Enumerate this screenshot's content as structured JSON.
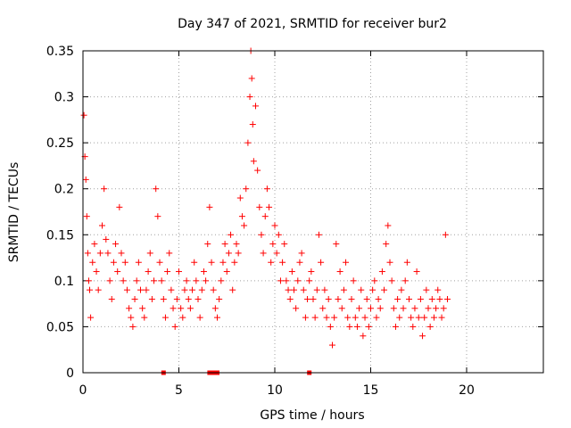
{
  "chart_data": {
    "type": "scatter",
    "title": "Day 347 of 2021, SRMTID for receiver bur2",
    "xlabel": "GPS time / hours",
    "ylabel": "SRMTID / TECUs",
    "xlim": [
      0,
      24
    ],
    "ylim": [
      0,
      0.35
    ],
    "x_ticks": [
      0,
      5,
      10,
      15,
      20
    ],
    "x_tick_labels": [
      "0",
      "5",
      "10",
      "15",
      "20"
    ],
    "y_ticks": [
      0,
      0.05,
      0.1,
      0.15,
      0.2,
      0.25,
      0.3,
      0.35
    ],
    "y_tick_labels": [
      "0",
      "0.05",
      "0.1",
      "0.15",
      "0.2",
      "0.25",
      "0.3",
      "0.35"
    ],
    "grid": true,
    "marker": "plus",
    "color": "#ff0000",
    "series": [
      {
        "name": "bur2 SRMTID",
        "points": [
          [
            0.05,
            0.28
          ],
          [
            0.1,
            0.235
          ],
          [
            0.15,
            0.21
          ],
          [
            0.2,
            0.17
          ],
          [
            0.25,
            0.13
          ],
          [
            0.3,
            0.1
          ],
          [
            0.35,
            0.09
          ],
          [
            0.4,
            0.06
          ],
          [
            0.5,
            0.12
          ],
          [
            0.6,
            0.14
          ],
          [
            0.7,
            0.11
          ],
          [
            0.8,
            0.09
          ],
          [
            0.9,
            0.13
          ],
          [
            1.0,
            0.16
          ],
          [
            1.1,
            0.2
          ],
          [
            1.2,
            0.145
          ],
          [
            1.3,
            0.13
          ],
          [
            1.4,
            0.1
          ],
          [
            1.5,
            0.08
          ],
          [
            1.6,
            0.12
          ],
          [
            1.7,
            0.14
          ],
          [
            1.8,
            0.11
          ],
          [
            1.9,
            0.18
          ],
          [
            2.0,
            0.13
          ],
          [
            2.1,
            0.1
          ],
          [
            2.2,
            0.12
          ],
          [
            2.3,
            0.09
          ],
          [
            2.4,
            0.07
          ],
          [
            2.5,
            0.06
          ],
          [
            2.6,
            0.05
          ],
          [
            2.7,
            0.08
          ],
          [
            2.8,
            0.1
          ],
          [
            2.9,
            0.12
          ],
          [
            3.0,
            0.09
          ],
          [
            3.1,
            0.07
          ],
          [
            3.2,
            0.06
          ],
          [
            3.3,
            0.09
          ],
          [
            3.4,
            0.11
          ],
          [
            3.5,
            0.13
          ],
          [
            3.6,
            0.08
          ],
          [
            3.7,
            0.1
          ],
          [
            3.8,
            0.2
          ],
          [
            3.9,
            0.17
          ],
          [
            4.0,
            0.12
          ],
          [
            4.1,
            0.1
          ],
          [
            4.2,
            0.08
          ],
          [
            4.3,
            0.06
          ],
          [
            4.4,
            0.11
          ],
          [
            4.5,
            0.13
          ],
          [
            4.6,
            0.09
          ],
          [
            4.7,
            0.07
          ],
          [
            4.8,
            0.05
          ],
          [
            4.9,
            0.08
          ],
          [
            5.0,
            0.11
          ],
          [
            5.1,
            0.07
          ],
          [
            5.2,
            0.06
          ],
          [
            5.3,
            0.09
          ],
          [
            5.4,
            0.1
          ],
          [
            5.5,
            0.08
          ],
          [
            5.6,
            0.07
          ],
          [
            5.7,
            0.09
          ],
          [
            5.8,
            0.12
          ],
          [
            5.9,
            0.1
          ],
          [
            6.0,
            0.08
          ],
          [
            6.1,
            0.06
          ],
          [
            6.2,
            0.09
          ],
          [
            6.3,
            0.11
          ],
          [
            6.4,
            0.1
          ],
          [
            6.5,
            0.14
          ],
          [
            6.6,
            0.18
          ],
          [
            6.7,
            0.12
          ],
          [
            6.8,
            0.09
          ],
          [
            6.9,
            0.07
          ],
          [
            7.0,
            0.06
          ],
          [
            7.1,
            0.08
          ],
          [
            7.2,
            0.1
          ],
          [
            7.3,
            0.12
          ],
          [
            7.4,
            0.14
          ],
          [
            7.5,
            0.11
          ],
          [
            7.6,
            0.13
          ],
          [
            7.7,
            0.15
          ],
          [
            7.8,
            0.09
          ],
          [
            7.9,
            0.12
          ],
          [
            8.0,
            0.14
          ],
          [
            8.1,
            0.13
          ],
          [
            8.2,
            0.19
          ],
          [
            8.3,
            0.17
          ],
          [
            8.4,
            0.16
          ],
          [
            8.5,
            0.2
          ],
          [
            8.6,
            0.25
          ],
          [
            8.7,
            0.3
          ],
          [
            8.75,
            0.35
          ],
          [
            8.8,
            0.32
          ],
          [
            8.85,
            0.27
          ],
          [
            8.9,
            0.23
          ],
          [
            9.0,
            0.29
          ],
          [
            9.1,
            0.22
          ],
          [
            9.2,
            0.18
          ],
          [
            9.3,
            0.15
          ],
          [
            9.4,
            0.13
          ],
          [
            9.5,
            0.17
          ],
          [
            9.6,
            0.2
          ],
          [
            9.7,
            0.18
          ],
          [
            9.8,
            0.12
          ],
          [
            9.9,
            0.14
          ],
          [
            10.0,
            0.16
          ],
          [
            10.1,
            0.13
          ],
          [
            10.2,
            0.15
          ],
          [
            10.3,
            0.1
          ],
          [
            10.4,
            0.12
          ],
          [
            10.5,
            0.14
          ],
          [
            10.6,
            0.1
          ],
          [
            10.7,
            0.09
          ],
          [
            10.8,
            0.08
          ],
          [
            10.9,
            0.11
          ],
          [
            11.0,
            0.09
          ],
          [
            11.1,
            0.07
          ],
          [
            11.2,
            0.1
          ],
          [
            11.3,
            0.12
          ],
          [
            11.4,
            0.13
          ],
          [
            11.5,
            0.09
          ],
          [
            11.6,
            0.06
          ],
          [
            11.7,
            0.08
          ],
          [
            11.8,
            0.1
          ],
          [
            11.9,
            0.11
          ],
          [
            12.0,
            0.08
          ],
          [
            12.1,
            0.06
          ],
          [
            12.2,
            0.09
          ],
          [
            12.3,
            0.15
          ],
          [
            12.4,
            0.12
          ],
          [
            12.5,
            0.07
          ],
          [
            12.6,
            0.09
          ],
          [
            12.7,
            0.06
          ],
          [
            12.8,
            0.08
          ],
          [
            12.9,
            0.05
          ],
          [
            13.0,
            0.03
          ],
          [
            13.1,
            0.06
          ],
          [
            13.2,
            0.14
          ],
          [
            13.3,
            0.08
          ],
          [
            13.4,
            0.11
          ],
          [
            13.5,
            0.07
          ],
          [
            13.6,
            0.09
          ],
          [
            13.7,
            0.12
          ],
          [
            13.8,
            0.06
          ],
          [
            13.9,
            0.05
          ],
          [
            14.0,
            0.08
          ],
          [
            14.1,
            0.1
          ],
          [
            14.2,
            0.06
          ],
          [
            14.3,
            0.05
          ],
          [
            14.4,
            0.07
          ],
          [
            14.5,
            0.09
          ],
          [
            14.6,
            0.04
          ],
          [
            14.7,
            0.06
          ],
          [
            14.8,
            0.08
          ],
          [
            14.9,
            0.05
          ],
          [
            15.0,
            0.07
          ],
          [
            15.1,
            0.09
          ],
          [
            15.2,
            0.1
          ],
          [
            15.3,
            0.06
          ],
          [
            15.4,
            0.08
          ],
          [
            15.5,
            0.07
          ],
          [
            15.6,
            0.11
          ],
          [
            15.7,
            0.09
          ],
          [
            15.8,
            0.14
          ],
          [
            15.9,
            0.16
          ],
          [
            16.0,
            0.12
          ],
          [
            16.1,
            0.1
          ],
          [
            16.2,
            0.07
          ],
          [
            16.3,
            0.05
          ],
          [
            16.4,
            0.08
          ],
          [
            16.5,
            0.06
          ],
          [
            16.6,
            0.09
          ],
          [
            16.7,
            0.07
          ],
          [
            16.8,
            0.1
          ],
          [
            16.9,
            0.12
          ],
          [
            17.0,
            0.08
          ],
          [
            17.1,
            0.06
          ],
          [
            17.2,
            0.05
          ],
          [
            17.3,
            0.07
          ],
          [
            17.4,
            0.11
          ],
          [
            17.5,
            0.06
          ],
          [
            17.6,
            0.08
          ],
          [
            17.7,
            0.04
          ],
          [
            17.8,
            0.06
          ],
          [
            17.9,
            0.09
          ],
          [
            18.0,
            0.07
          ],
          [
            18.1,
            0.05
          ],
          [
            18.2,
            0.08
          ],
          [
            18.3,
            0.06
          ],
          [
            18.4,
            0.07
          ],
          [
            18.5,
            0.09
          ],
          [
            18.6,
            0.08
          ],
          [
            18.7,
            0.06
          ],
          [
            18.8,
            0.07
          ],
          [
            18.9,
            0.15
          ],
          [
            19.0,
            0.08
          ]
        ]
      }
    ],
    "zero_markers": [
      4.2,
      6.6,
      6.8,
      7.0,
      11.8
    ]
  }
}
